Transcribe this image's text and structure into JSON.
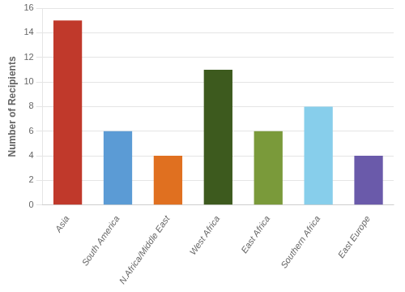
{
  "chart_data": {
    "type": "bar",
    "categories": [
      "Asia",
      "South America",
      "N.Africa/Middle East",
      "West Africa",
      "East Africa",
      "Southern Africa",
      "East Europe"
    ],
    "values": [
      15,
      6,
      4,
      11,
      6,
      8,
      4
    ],
    "colors": [
      "#c0392b",
      "#5b9bd5",
      "#e07020",
      "#3d5a1e",
      "#7a9a3a",
      "#87ceeb",
      "#6a5aaa"
    ],
    "ylabel": "Number of Recipients",
    "ylim": [
      0,
      16
    ],
    "yticks": [
      0,
      2,
      4,
      6,
      8,
      10,
      12,
      14,
      16
    ],
    "grid": true
  }
}
